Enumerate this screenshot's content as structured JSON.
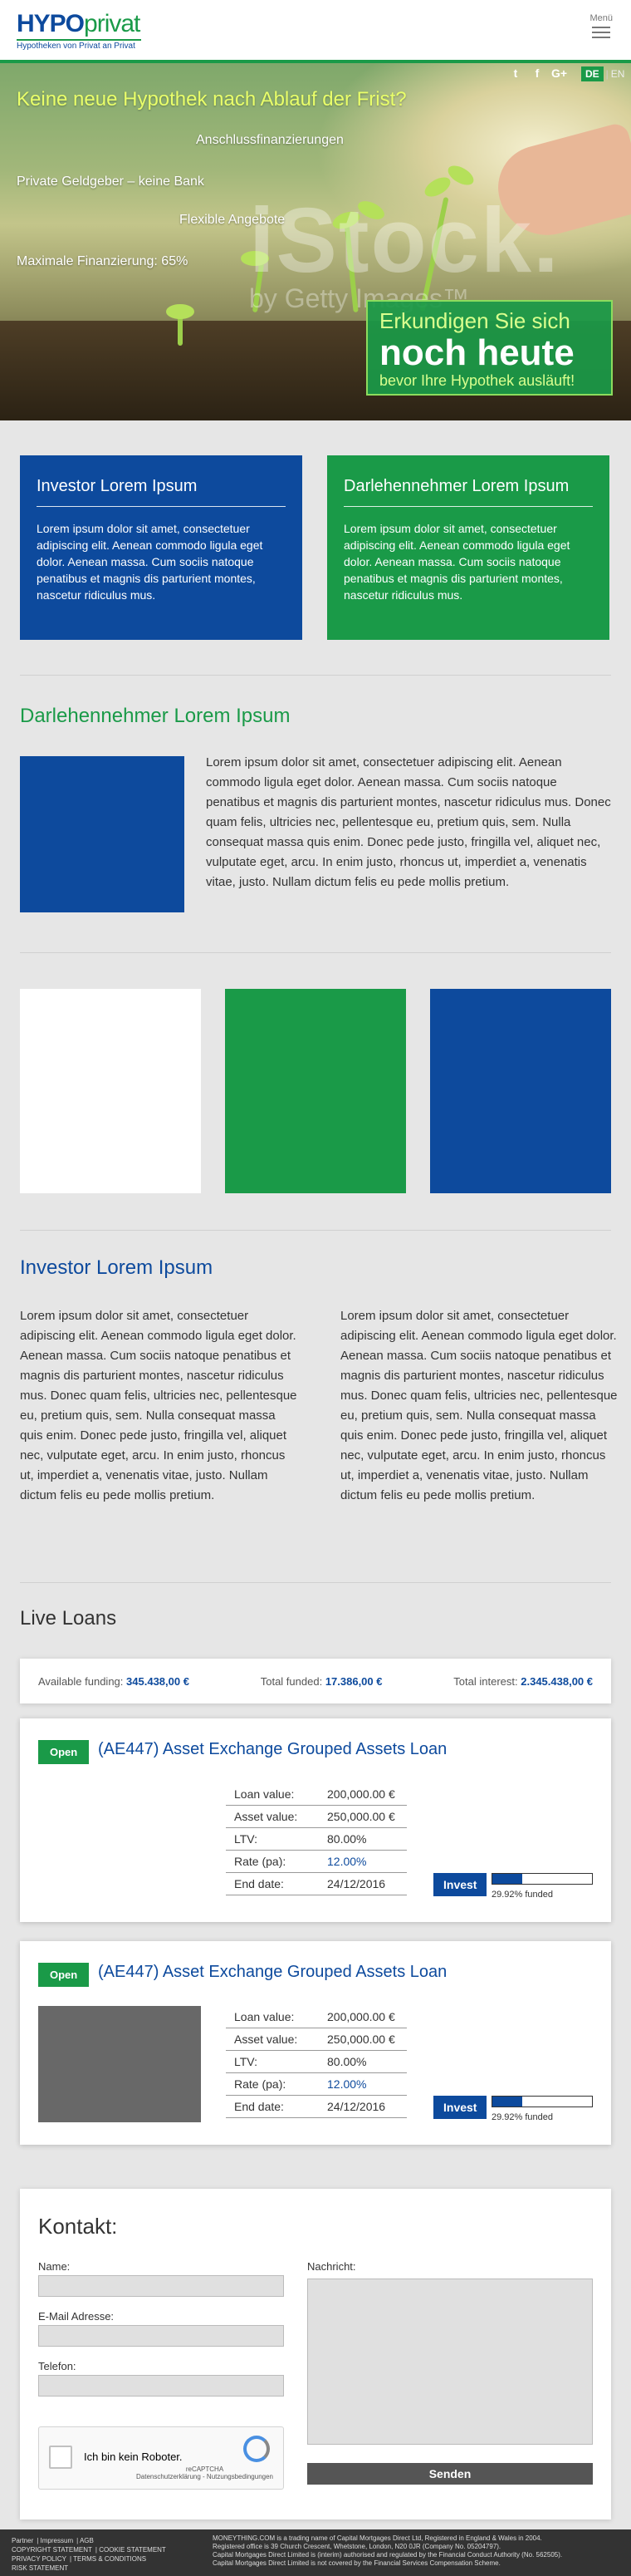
{
  "header": {
    "logo_main": "HYPO",
    "logo_accent": "privat",
    "logo_tagline": "Hypotheken von Privat an Privat",
    "menu_label": "Menü"
  },
  "hero": {
    "title": "Keine neue Hypothek nach Ablauf der Frist?",
    "features": [
      "Anschlussfinanzierungen",
      "Private Geldgeber – keine Bank",
      "Flexible Angebote",
      "Maximale Finanzierung: 65%"
    ],
    "watermark": "iStock.",
    "watermark_sub": "by Getty Images™",
    "social": [
      "t",
      "f",
      "G+"
    ],
    "lang_active": "DE",
    "lang_other": "EN",
    "cta_line1": "Erkundigen Sie sich",
    "cta_line2": "noch heute",
    "cta_line3": "bevor Ihre Hypothek ausläuft!"
  },
  "cards": [
    {
      "title": "Investor Lorem Ipsum",
      "body": "Lorem ipsum dolor sit amet, consectetuer adipiscing elit. Aenean commodo ligula eget dolor. Aenean massa. Cum sociis natoque penatibus et magnis dis parturient montes, nascetur ridiculus mus.",
      "color": "#0d4a9d"
    },
    {
      "title": "Darlehennehmer Lorem Ipsum",
      "body": "Lorem ipsum dolor sit amet, consectetuer adipiscing elit. Aenean commodo ligula eget dolor. Aenean massa. Cum sociis natoque penatibus et magnis dis parturient montes, nascetur ridiculus mus.",
      "color": "#1a9a48"
    }
  ],
  "borrower": {
    "title": "Darlehennehmer Lorem Ipsum",
    "body": "Lorem ipsum dolor sit amet, consectetuer adipiscing elit. Aenean commodo ligula eget dolor. Aenean massa. Cum sociis natoque penatibus et magnis dis parturient montes, nascetur ridiculus mus. Donec quam felis, ultricies nec, pellentesque eu, pretium quis, sem. Nulla consequat massa quis enim. Donec pede justo, fringilla vel, aliquet nec, vulputate eget, arcu. In enim justo, rhoncus ut, imperdiet a, venenatis vitae, justo. Nullam dictum felis eu pede mollis pretium."
  },
  "tiles": [
    "#ffffff",
    "#1a9a48",
    "#0d4a9d"
  ],
  "investor": {
    "title": "Investor Lorem Ipsum",
    "col1": "Lorem ipsum dolor sit amet, consectetuer adipiscing elit. Aenean commodo ligula eget dolor. Aenean massa. Cum sociis natoque penatibus et magnis dis parturient montes, nascetur ridiculus mus. Donec quam felis, ultricies nec, pellentesque eu, pretium quis, sem. Nulla consequat massa quis enim. Donec pede justo, fringilla vel, aliquet nec, vulputate eget, arcu. In enim justo, rhoncus ut, imperdiet a, venenatis vitae, justo. Nullam dictum felis eu pede mollis pretium.",
    "col2": "Lorem ipsum dolor sit amet, consectetuer adipiscing elit. Aenean commodo ligula eget dolor. Aenean massa. Cum sociis natoque penatibus et magnis dis parturient montes, nascetur ridiculus mus. Donec quam felis, ultricies nec, pellentesque eu, pretium quis, sem. Nulla consequat massa quis enim. Donec pede justo, fringilla vel, aliquet nec, vulputate eget, arcu. In enim justo, rhoncus ut, imperdiet a, venenatis vitae, justo. Nullam dictum felis eu pede mollis pretium."
  },
  "loans_section": {
    "title": "Live Loans",
    "available_label": "Available funding:",
    "available_value": "345.438,00 €",
    "funded_label": "Total funded:",
    "funded_value": "17.386,00 €",
    "interest_label": "Total interest:",
    "interest_value": "2.345.438,00 €"
  },
  "loans": [
    {
      "status": "Open",
      "title": "(AE447) Asset Exchange Grouped Assets Loan",
      "fields": [
        {
          "k": "Loan value:",
          "v": "200,000.00 €"
        },
        {
          "k": "Asset value:",
          "v": "250,000.00 €"
        },
        {
          "k": "LTV:",
          "v": "80.00%"
        },
        {
          "k": "Rate (pa):",
          "v": "12.00%"
        },
        {
          "k": "End date:",
          "v": "24/12/2016"
        }
      ],
      "invest_label": "Invest",
      "funded_fraction": 0.2992,
      "funded_text": "29.92% funded"
    },
    {
      "status": "Open",
      "title": "(AE447) Asset Exchange Grouped Assets Loan",
      "fields": [
        {
          "k": "Loan value:",
          "v": "200,000.00 €"
        },
        {
          "k": "Asset value:",
          "v": "250,000.00 €"
        },
        {
          "k": "LTV:",
          "v": "80.00%"
        },
        {
          "k": "Rate (pa):",
          "v": "12.00%"
        },
        {
          "k": "End date:",
          "v": "24/12/2016"
        }
      ],
      "invest_label": "Invest",
      "funded_fraction": 0.2992,
      "funded_text": "29.92% funded"
    }
  ],
  "contact": {
    "title": "Kontakt:",
    "name_label": "Name:",
    "email_label": "E-Mail Adresse:",
    "phone_label": "Telefon:",
    "message_label": "Nachricht:",
    "captcha_label": "Ich bin kein Roboter.",
    "captcha_brand": "reCAPTCHA",
    "captcha_links": "Datenschutzerklärung - Nutzungsbedingungen",
    "send_label": "Senden"
  },
  "footer": {
    "links": [
      "Partner",
      "Impressum",
      "AGB",
      "COPYRIGHT STATEMENT",
      "COOKIE STATEMENT",
      "PRIVACY POLICY",
      "TERMS & CONDITIONS",
      "RISK STATEMENT"
    ],
    "legal": [
      "MONEYTHING.COM is a trading name of Capital Mortgages Direct Ltd, Registered in England & Wales in 2004.",
      "Registered office is 39 Church Crescent, Whetstone, London, N20 0JR (Company No. 05204797).",
      "Capital Mortgages Direct Limited is (interim) authorised and regulated by the Financial Conduct Authority (No. 562505).",
      "Capital Mortgages Direct Limited is not covered by the Financial Services Compensation Scheme."
    ]
  }
}
